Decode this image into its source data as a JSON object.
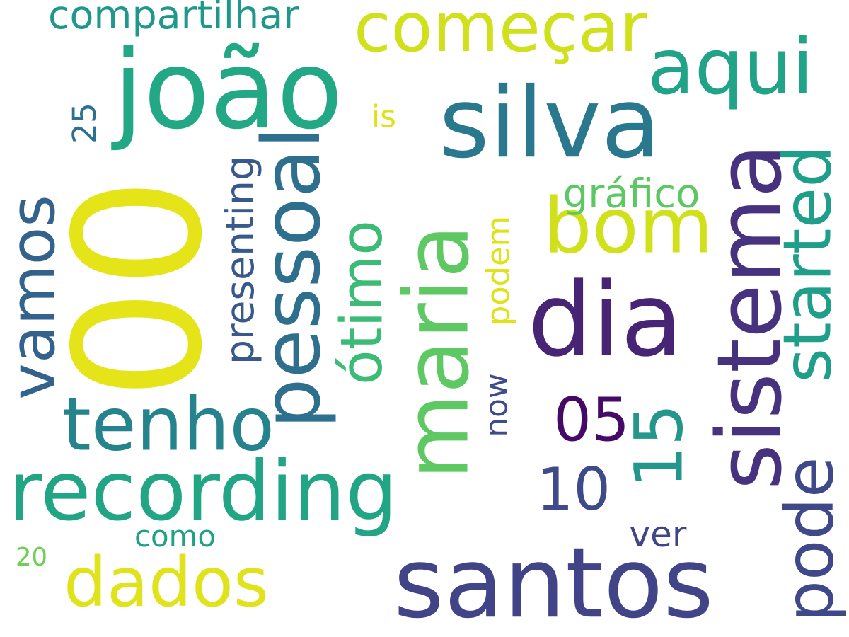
{
  "words": [
    {
      "text": "00",
      "color": "#e5e419",
      "orientation": "vertical"
    },
    {
      "text": "santos",
      "color": "#414487",
      "orientation": "horizontal"
    },
    {
      "text": "maria",
      "color": "#5ec962",
      "orientation": "vertical"
    },
    {
      "text": "silva",
      "color": "#2a788e",
      "orientation": "horizontal"
    },
    {
      "text": "joão",
      "color": "#22a884",
      "orientation": "horizontal"
    },
    {
      "text": "sistema",
      "color": "#46327e",
      "orientation": "vertical"
    },
    {
      "text": "dia",
      "color": "#482475",
      "orientation": "horizontal"
    },
    {
      "text": "bom",
      "color": "#d0e11c",
      "orientation": "horizontal"
    },
    {
      "text": "recording",
      "color": "#21a585",
      "orientation": "horizontal"
    },
    {
      "text": "pessoal",
      "color": "#2e6f8e",
      "orientation": "vertical"
    },
    {
      "text": "started",
      "color": "#1f9e89",
      "orientation": "vertical"
    },
    {
      "text": "vamos",
      "color": "#33638d",
      "orientation": "vertical"
    },
    {
      "text": "tenho",
      "color": "#25838e",
      "orientation": "horizontal"
    },
    {
      "text": "começar",
      "color": "#d0e11c",
      "orientation": "horizontal"
    },
    {
      "text": "ótimo",
      "color": "#3bbb75",
      "orientation": "vertical"
    },
    {
      "text": "aqui",
      "color": "#20a386",
      "orientation": "horizontal"
    },
    {
      "text": "dados",
      "color": "#e0e31c",
      "orientation": "horizontal"
    },
    {
      "text": "pode",
      "color": "#3f4889",
      "orientation": "vertical"
    },
    {
      "text": "05",
      "color": "#450a68",
      "orientation": "horizontal"
    },
    {
      "text": "10",
      "color": "#3e4a89",
      "orientation": "horizontal"
    },
    {
      "text": "15",
      "color": "#24968b",
      "orientation": "vertical"
    },
    {
      "text": "compartilhar",
      "color": "#1f988b",
      "orientation": "horizontal"
    },
    {
      "text": "presenting",
      "color": "#38598c",
      "orientation": "vertical"
    },
    {
      "text": "gráfico",
      "color": "#5cc863",
      "orientation": "horizontal"
    },
    {
      "text": "podem",
      "color": "#dde318",
      "orientation": "vertical"
    },
    {
      "text": "como",
      "color": "#1fa187",
      "orientation": "horizontal"
    },
    {
      "text": "ver",
      "color": "#404588",
      "orientation": "horizontal"
    },
    {
      "text": "now",
      "color": "#3e4c8a",
      "orientation": "vertical"
    },
    {
      "text": "is",
      "color": "#dde318",
      "orientation": "horizontal"
    },
    {
      "text": "25",
      "color": "#2c728e",
      "orientation": "vertical"
    },
    {
      "text": "20",
      "color": "#6ece58",
      "orientation": "horizontal"
    }
  ]
}
